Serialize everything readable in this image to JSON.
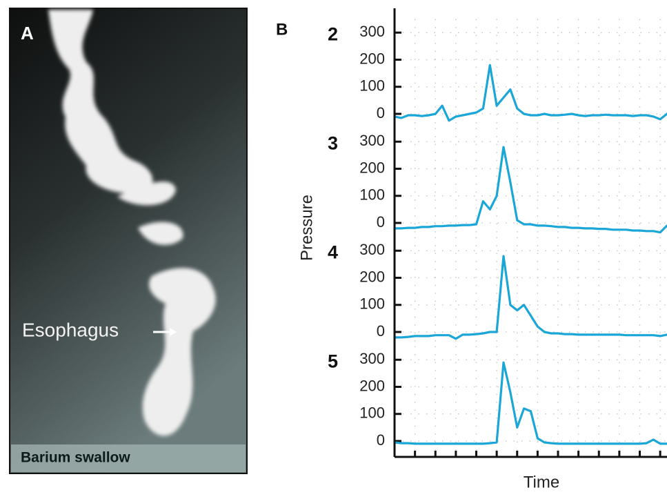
{
  "panel_a": {
    "label": "A",
    "annotation": "Esophagus",
    "caption": "Barium swallow"
  },
  "panel_b": {
    "label": "B",
    "ylabel": "Pressure",
    "xlabel": "Time"
  },
  "chart_data": [
    {
      "type": "line",
      "title": "2",
      "color": "#1aa6d6",
      "grid": true,
      "xlim": [
        0,
        40
      ],
      "ylim": [
        -50,
        350
      ],
      "yticks": [
        0,
        100,
        200,
        300
      ],
      "x": [
        0,
        1,
        2,
        3,
        4,
        5,
        6,
        7,
        8,
        9,
        10,
        11,
        12,
        13,
        14,
        15,
        16,
        17,
        18,
        19,
        20,
        21,
        22,
        23,
        24,
        25,
        26,
        27,
        28,
        29,
        30,
        31,
        32,
        33,
        34,
        35,
        36,
        37,
        38,
        39,
        40
      ],
      "values": [
        -10,
        -15,
        -5,
        -5,
        -8,
        -5,
        0,
        30,
        -25,
        -10,
        -5,
        0,
        5,
        20,
        180,
        30,
        60,
        90,
        20,
        0,
        -5,
        -5,
        0,
        -5,
        -5,
        -3,
        0,
        -5,
        -8,
        -5,
        -5,
        -3,
        -5,
        -5,
        -5,
        -8,
        -5,
        -5,
        -10,
        -20,
        0
      ]
    },
    {
      "type": "line",
      "title": "3",
      "color": "#1aa6d6",
      "grid": true,
      "xlim": [
        0,
        40
      ],
      "ylim": [
        -50,
        350
      ],
      "yticks": [
        0,
        100,
        200,
        300
      ],
      "x": [
        0,
        1,
        2,
        3,
        4,
        5,
        6,
        7,
        8,
        9,
        10,
        11,
        12,
        13,
        14,
        15,
        16,
        17,
        18,
        19,
        20,
        21,
        22,
        23,
        24,
        25,
        26,
        27,
        28,
        29,
        30,
        31,
        32,
        33,
        34,
        35,
        36,
        37,
        38,
        39,
        40
      ],
      "values": [
        -20,
        -20,
        -18,
        -18,
        -15,
        -15,
        -12,
        -12,
        -10,
        -10,
        -8,
        -8,
        -5,
        80,
        50,
        100,
        280,
        150,
        10,
        -5,
        -5,
        -10,
        -10,
        -12,
        -15,
        -15,
        -18,
        -18,
        -20,
        -20,
        -22,
        -22,
        -25,
        -25,
        -25,
        -28,
        -28,
        -30,
        -30,
        -35,
        -10
      ]
    },
    {
      "type": "line",
      "title": "4",
      "color": "#1aa6d6",
      "grid": true,
      "xlim": [
        0,
        40
      ],
      "ylim": [
        -50,
        350
      ],
      "yticks": [
        0,
        100,
        200,
        300
      ],
      "x": [
        0,
        1,
        2,
        3,
        4,
        5,
        6,
        7,
        8,
        9,
        10,
        11,
        12,
        13,
        14,
        15,
        16,
        17,
        18,
        19,
        20,
        21,
        22,
        23,
        24,
        25,
        26,
        27,
        28,
        29,
        30,
        31,
        32,
        33,
        34,
        35,
        36,
        37,
        38,
        39,
        40
      ],
      "values": [
        -20,
        -20,
        -18,
        -15,
        -15,
        -15,
        -12,
        -12,
        -12,
        -25,
        -10,
        -10,
        -8,
        -5,
        0,
        0,
        280,
        100,
        80,
        100,
        60,
        20,
        0,
        -5,
        -5,
        -8,
        -8,
        -10,
        -10,
        -10,
        -10,
        -10,
        -10,
        -10,
        -12,
        -12,
        -12,
        -12,
        -12,
        -15,
        -10
      ]
    },
    {
      "type": "line",
      "title": "5",
      "color": "#1aa6d6",
      "grid": true,
      "xlim": [
        0,
        40
      ],
      "ylim": [
        -50,
        350
      ],
      "yticks": [
        0,
        100,
        200,
        300
      ],
      "xticks": [
        3,
        6,
        9,
        12,
        15,
        18,
        21,
        24,
        27,
        30,
        33,
        36,
        39
      ],
      "x": [
        0,
        1,
        2,
        3,
        4,
        5,
        6,
        7,
        8,
        9,
        10,
        11,
        12,
        13,
        14,
        15,
        16,
        17,
        18,
        19,
        20,
        21,
        22,
        23,
        24,
        25,
        26,
        27,
        28,
        29,
        30,
        31,
        32,
        33,
        34,
        35,
        36,
        37,
        38,
        39,
        40
      ],
      "values": [
        -5,
        -8,
        -8,
        -10,
        -10,
        -10,
        -10,
        -10,
        -10,
        -10,
        -10,
        -10,
        -10,
        -10,
        -8,
        -5,
        290,
        180,
        50,
        120,
        110,
        10,
        -5,
        -8,
        -10,
        -10,
        -10,
        -10,
        -10,
        -10,
        -10,
        -10,
        -10,
        -10,
        -10,
        -10,
        -10,
        -8,
        5,
        -10,
        -10
      ]
    }
  ]
}
